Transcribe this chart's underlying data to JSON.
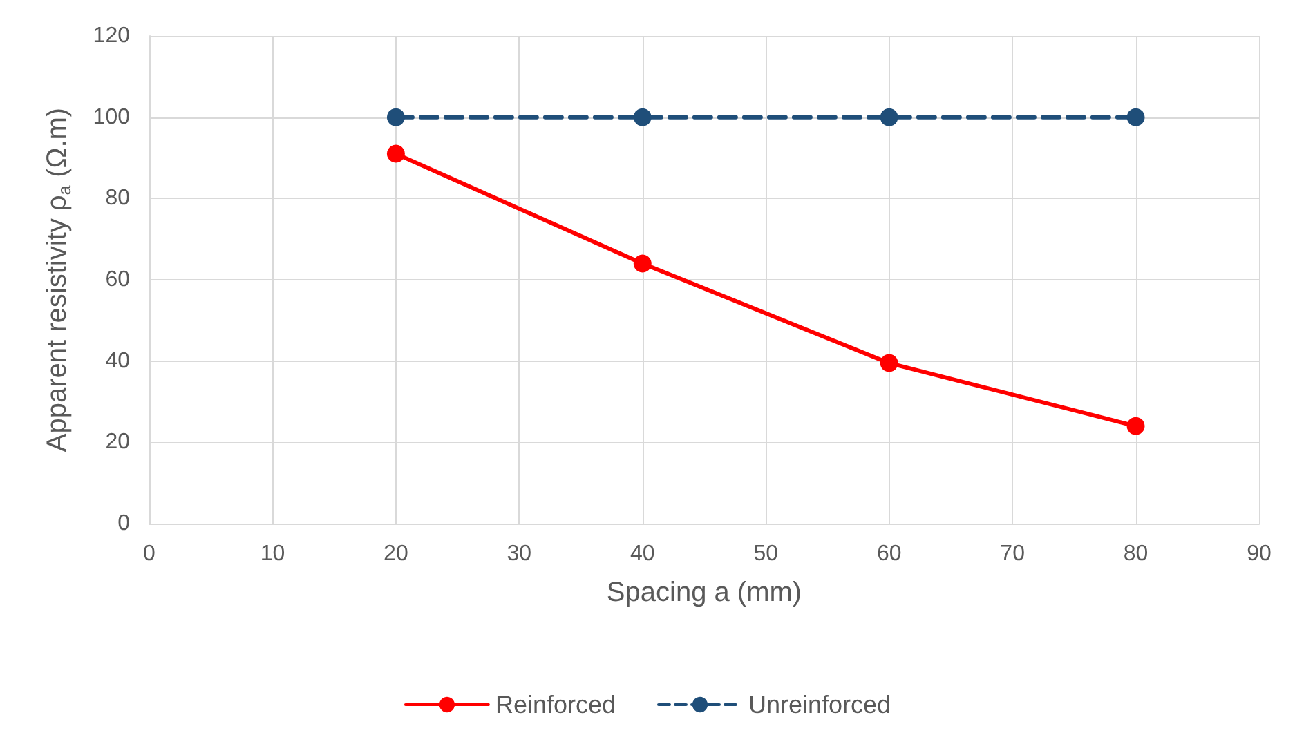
{
  "chart_data": {
    "type": "line",
    "xlabel": "Spacing a (mm)",
    "ylabel": "Apparent resistivity ρ$_{a}$ (Ω.m)",
    "x": [
      20,
      40,
      60,
      80
    ],
    "series": [
      {
        "name": "Reinforced",
        "color": "#ff0000",
        "values": [
          91,
          64,
          39.5,
          24
        ],
        "line_style": "solid"
      },
      {
        "name": "Unreinforced",
        "color": "#1f4e79",
        "values": [
          100,
          100,
          100,
          100
        ],
        "line_style": "dashed"
      }
    ],
    "xlim": [
      0,
      90
    ],
    "xticks": [
      0,
      10,
      20,
      30,
      40,
      50,
      60,
      70,
      80,
      90
    ],
    "ylim": [
      0,
      120
    ],
    "yticks": [
      0,
      20,
      40,
      60,
      80,
      100,
      120
    ],
    "grid": true,
    "legend": "bottom",
    "marker": "circle"
  }
}
